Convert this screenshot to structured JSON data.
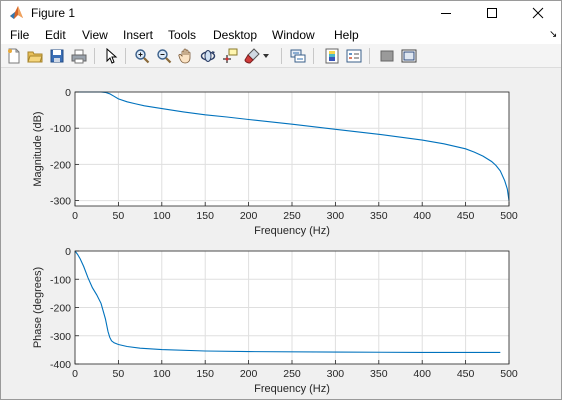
{
  "window": {
    "title": "Figure 1",
    "app_icon": "matlab-icon"
  },
  "menu": {
    "items": [
      "File",
      "Edit",
      "View",
      "Insert",
      "Tools",
      "Desktop",
      "Window",
      "Help"
    ]
  },
  "toolbar": {
    "icons": [
      "new-figure-icon",
      "open-file-icon",
      "save-icon",
      "print-icon",
      "pointer-icon",
      "zoom-in-icon",
      "zoom-out-icon",
      "pan-icon",
      "rotate-3d-icon",
      "data-cursor-icon",
      "brush-icon",
      "brush-dropdown-icon",
      "link-plot-icon",
      "insert-colorbar-icon",
      "insert-legend-icon",
      "hide-plot-tools-icon",
      "show-plot-tools-icon"
    ]
  },
  "colors": {
    "line": "#0072bd",
    "grid": "#dfdfdf",
    "axes_bg": "#ffffff",
    "figure_bg": "#f0f0f0"
  },
  "chart_data": [
    {
      "type": "line",
      "xlabel": "Frequency (Hz)",
      "ylabel": "Magnitude (dB)",
      "xlim": [
        0,
        500
      ],
      "ylim": [
        -315,
        0
      ],
      "xticks": [
        0,
        50,
        100,
        150,
        200,
        250,
        300,
        350,
        400,
        450,
        500
      ],
      "yticks": [
        0,
        -100,
        -200,
        -300
      ],
      "grid": true,
      "series": [
        {
          "x": [
            0,
            10,
            20,
            25,
            30,
            35,
            40,
            45,
            50,
            60,
            70,
            80,
            100,
            125,
            150,
            175,
            200,
            250,
            300,
            350,
            400,
            425,
            450,
            460,
            470,
            480,
            485,
            490,
            495,
            498,
            500
          ],
          "y": [
            0,
            0,
            0,
            0,
            0,
            -1,
            -5,
            -12,
            -19,
            -27,
            -33,
            -38,
            -46,
            -55,
            -63,
            -69,
            -76,
            -89,
            -103,
            -117,
            -133,
            -143,
            -157,
            -166,
            -177,
            -192,
            -203,
            -218,
            -245,
            -268,
            -300
          ]
        }
      ]
    },
    {
      "type": "line",
      "xlabel": "Frequency (Hz)",
      "ylabel": "Phase (degrees)",
      "xlim": [
        0,
        500
      ],
      "ylim": [
        -400,
        0
      ],
      "xticks": [
        0,
        50,
        100,
        150,
        200,
        250,
        300,
        350,
        400,
        450,
        500
      ],
      "yticks": [
        0,
        -100,
        -200,
        -300,
        -400
      ],
      "grid": true,
      "series": [
        {
          "x": [
            0,
            3,
            6,
            10,
            15,
            20,
            25,
            30,
            35,
            38,
            40,
            42,
            45,
            50,
            60,
            75,
            100,
            150,
            200,
            300,
            400,
            490
          ],
          "y": [
            0,
            -12,
            -28,
            -55,
            -95,
            -130,
            -155,
            -185,
            -240,
            -285,
            -305,
            -318,
            -325,
            -331,
            -338,
            -344,
            -349,
            -354,
            -356,
            -358,
            -359,
            -359
          ]
        }
      ]
    }
  ]
}
